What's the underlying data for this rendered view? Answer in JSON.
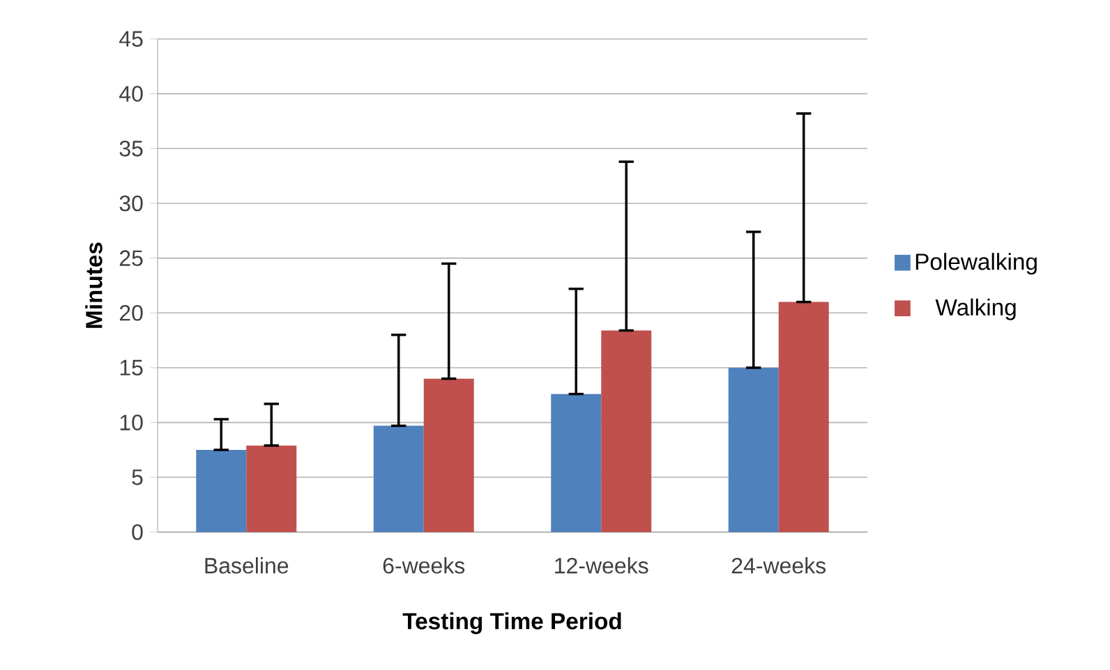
{
  "chart_data": {
    "type": "bar",
    "xlabel": "Testing Time Period",
    "ylabel": "Minutes",
    "categories": [
      "Baseline",
      "6-weeks",
      "12-weeks",
      "24-weeks"
    ],
    "series": [
      {
        "name": "Polewalking",
        "color": "#4f81bd",
        "values": [
          7.5,
          9.7,
          12.6,
          15.0
        ],
        "errors": [
          [
            7.5,
            10.3
          ],
          [
            9.7,
            18.0
          ],
          [
            12.6,
            22.2
          ],
          [
            15.0,
            27.4
          ]
        ]
      },
      {
        "name": "Walking",
        "color": "#c0504d",
        "values": [
          7.9,
          14.0,
          18.4,
          21.0
        ],
        "errors": [
          [
            7.9,
            11.7
          ],
          [
            14.0,
            24.5
          ],
          [
            18.4,
            33.8
          ],
          [
            21.0,
            38.2
          ]
        ]
      }
    ],
    "ylim": [
      0,
      45
    ],
    "yticks": [
      0,
      5,
      10,
      15,
      20,
      25,
      30,
      35,
      40,
      45
    ],
    "grid": "y",
    "legend": "right"
  }
}
